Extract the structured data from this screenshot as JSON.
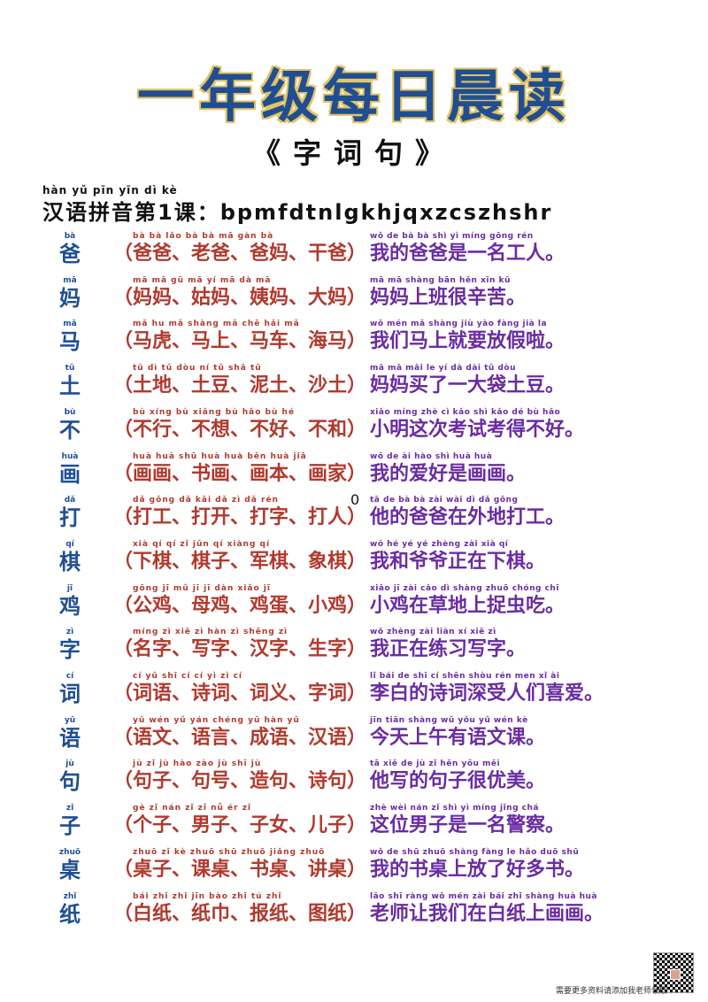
{
  "title": "一年级每日晨读",
  "subtitle": "《字词句》",
  "lesson": {
    "pinyin": "hàn yǔ pīn yīn dì   kè",
    "text": "汉语拼音第1课：bpmfdtnlgkhjqxzcszhshr"
  },
  "stray_mark": "0",
  "rows": [
    {
      "char": "爸",
      "char_py": "bà",
      "words": "（爸爸、老爸、爸妈、干爸）",
      "words_py": "bà  bà      lǎo bà     bà  mā     gàn bà",
      "sentence": "我的爸爸是一名工人。",
      "sentence_py": "wǒ  de  bà  bà  shì  yì míng gōng rén"
    },
    {
      "char": "妈",
      "char_py": "mā",
      "words": "（妈妈、姑妈、姨妈、大妈）",
      "words_py": "mā  mā      gū  mā      yí  mā     dà  mā",
      "sentence": "妈妈上班很辛苦。",
      "sentence_py": "mā  mā shàng bān hěn  xīn  kǔ"
    },
    {
      "char": "马",
      "char_py": "mǎ",
      "words": "（马虎、马上、马车、海马）",
      "words_py": "mǎ  hu     mǎ shàng    mǎ chē    hǎi  mǎ",
      "sentence": "我们马上就要放假啦。",
      "sentence_py": "wǒ mén  mǎ shàng jiù yào fàng jià  la"
    },
    {
      "char": "土",
      "char_py": "tǔ",
      "words": "（土地、土豆、泥土、沙土）",
      "words_py": "tǔ  dì      tǔ dòu     ní  tǔ     shā  tǔ",
      "sentence": "妈妈买了一大袋土豆。",
      "sentence_py": "mā  mā mǎi  le  yí  dà  dài  tǔ  dòu"
    },
    {
      "char": "不",
      "char_py": "bù",
      "words": "（不行、不想、不好、不和）",
      "words_py": "bù xíng    bù xiǎng    bù hǎo     bù  hé",
      "sentence": "小明这次考试考得不好。",
      "sentence_py": "xiǎo míng zhè  cì  kǎo shì kǎo  dé  bù hǎo"
    },
    {
      "char": "画",
      "char_py": "huà",
      "words": "（画画、书画、画本、画家）",
      "words_py": "huà huà     shū huà    huà běn    huà jiā",
      "sentence": "我的爱好是画画。",
      "sentence_py": "wǒ  de  ài  hào shì huà huà"
    },
    {
      "char": "打",
      "char_py": "dǎ",
      "words": "（打工、打开、打字、打人）",
      "words_py": "dǎ gōng     dǎ kāi     dǎ  zì     dǎ rén",
      "sentence": "他的爸爸在外地打工。",
      "sentence_py": "tā  de  bà  bà zài wài  dì  dǎ gōng"
    },
    {
      "char": "棋",
      "char_py": "qí",
      "words": "（下棋、棋子、军棋、象棋）",
      "words_py": "xià  qí      qí  zǐ     jūn  qí    xiàng qí",
      "sentence": "我和爷爷正在下棋。",
      "sentence_py": "wǒ  hé  yé  yé zhèng zài xià  qí"
    },
    {
      "char": "鸡",
      "char_py": "jī",
      "words": "（公鸡、母鸡、鸡蛋、小鸡）",
      "words_py": "gōng jī     mǔ  jī      jī  dàn    xiǎo jī",
      "sentence": "小鸡在草地上捉虫吃。",
      "sentence_py": "xiǎo jī zài cǎo dì shàng zhuō chóng chī"
    },
    {
      "char": "字",
      "char_py": "zì",
      "words": "（名字、写字、汉字、生字）",
      "words_py": "míng zì    xiě  zì     hàn  zì   shēng zì",
      "sentence": "我正在练习写字。",
      "sentence_py": "wǒ zhèng zài liàn  xí  xiě  zì"
    },
    {
      "char": "词",
      "char_py": "cí",
      "words": "（词语、诗词、词义、字词）",
      "words_py": "cí  yǔ      shī  cí      cí  yì     zì  cí",
      "sentence": "李白的诗词深受人们喜爱。",
      "sentence_py": "lǐ  bái de shī  cí shēn shòu rén men  xǐ  ài"
    },
    {
      "char": "语",
      "char_py": "yǔ",
      "words": "（语文、语言、成语、汉语）",
      "words_py": "yǔ wén     yǔ yán    chéng yǔ    hàn  yǔ",
      "sentence": "今天上午有语文课。",
      "sentence_py": "jīn tiān shàng wǔ yǒu  yǔ  wén  kè"
    },
    {
      "char": "句",
      "char_py": "jù",
      "words": "（句子、句号、造句、诗句）",
      "words_py": "jù  zǐ     jù hào     zào jù     shī  jù",
      "sentence": "他写的句子很优美。",
      "sentence_py": "tā  xiě  de  jù  zǐ  hěn yōu měi"
    },
    {
      "char": "子",
      "char_py": "zǐ",
      "words": "（个子、男子、子女、儿子）",
      "words_py": "gè  zǐ     nán zǐ      zǐ  nǚ     ér  zǐ",
      "sentence": "这位男子是一名警察。",
      "sentence_py": "zhè wèi nán  zǐ  shì  yì míng jǐng chá"
    },
    {
      "char": "桌",
      "char_py": "zhuō",
      "words": "（桌子、课桌、书桌、讲桌）",
      "words_py": "zhuō zǐ    kè zhuō   shū zhuō   jiǎng zhuō",
      "sentence": "我的书桌上放了好多书。",
      "sentence_py": "wǒ  de  shū zhuō shàng fàng le hǎo duō shū"
    },
    {
      "char": "纸",
      "char_py": "zhǐ",
      "words": "（白纸、纸巾、报纸、图纸）",
      "words_py": "bái zhǐ    zhǐ jīn     bào zhǐ    tú  zhǐ",
      "sentence": "老师让我们在白纸上画画。",
      "sentence_py": "lǎo shī ràng wǒ  mén zài bái zhǐ shàng huà huà"
    }
  ],
  "footer": "需要更多资料请添加我老师领取"
}
